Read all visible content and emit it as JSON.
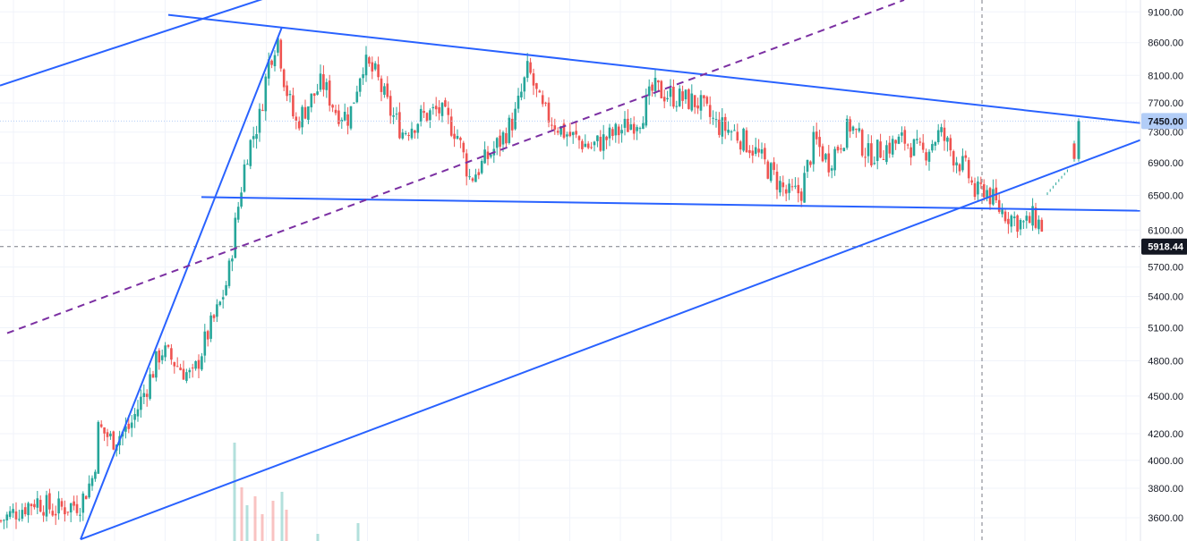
{
  "chart_data": {
    "type": "candlestick",
    "y_axis": {
      "side": "right",
      "ticks": [
        "9100.00",
        "8600.00",
        "8100.00",
        "7700.00",
        "7300.00",
        "6900.00",
        "6500.00",
        "6100.00",
        "5700.00",
        "5400.00",
        "5100.00",
        "4800.00",
        "4500.00",
        "4200.00",
        "4000.00",
        "3800.00",
        "3600.00"
      ],
      "range": [
        3450,
        9300
      ],
      "scale": "log"
    },
    "current_price": {
      "value": 7450.0,
      "label": "7450.00",
      "color": "#b2cdf7"
    },
    "crosshair_price": {
      "value": 5918.44,
      "label": "5918.44",
      "color": "#131722"
    },
    "colors": {
      "up": "#26a69a",
      "down": "#ef5350",
      "trendline": "#2962ff",
      "dashed_line": "#7b2fa2",
      "grid": "#f0f3fa"
    },
    "grid": true,
    "legend": "none",
    "price_path": [
      [
        0,
        3580
      ],
      [
        40,
        3720
      ],
      [
        60,
        3650
      ],
      [
        90,
        3700
      ],
      [
        105,
        3900
      ],
      [
        110,
        4250
      ],
      [
        125,
        4150
      ],
      [
        145,
        4250
      ],
      [
        165,
        4600
      ],
      [
        180,
        4900
      ],
      [
        200,
        4750
      ],
      [
        215,
        4650
      ],
      [
        230,
        5000
      ],
      [
        245,
        5300
      ],
      [
        255,
        5600
      ],
      [
        262,
        6100
      ],
      [
        268,
        6500
      ],
      [
        275,
        7000
      ],
      [
        290,
        7500
      ],
      [
        300,
        8300
      ],
      [
        310,
        8700
      ],
      [
        318,
        8000
      ],
      [
        330,
        7400
      ],
      [
        345,
        7700
      ],
      [
        360,
        8000
      ],
      [
        375,
        7600
      ],
      [
        390,
        7500
      ],
      [
        405,
        8300
      ],
      [
        420,
        8100
      ],
      [
        435,
        7600
      ],
      [
        450,
        7300
      ],
      [
        470,
        7500
      ],
      [
        490,
        7600
      ],
      [
        510,
        7300
      ],
      [
        525,
        6700
      ],
      [
        540,
        6900
      ],
      [
        560,
        7200
      ],
      [
        575,
        7500
      ],
      [
        590,
        8200
      ],
      [
        605,
        7600
      ],
      [
        630,
        7300
      ],
      [
        660,
        7100
      ],
      [
        690,
        7300
      ],
      [
        715,
        7500
      ],
      [
        730,
        7900
      ],
      [
        750,
        7800
      ],
      [
        780,
        7700
      ],
      [
        800,
        7400
      ],
      [
        820,
        7300
      ],
      [
        840,
        7100
      ],
      [
        860,
        6800
      ],
      [
        880,
        6500
      ],
      [
        895,
        6550
      ],
      [
        910,
        7200
      ],
      [
        925,
        6900
      ],
      [
        950,
        7400
      ],
      [
        970,
        7000
      ],
      [
        990,
        7100
      ],
      [
        1010,
        7200
      ],
      [
        1030,
        7000
      ],
      [
        1050,
        7300
      ],
      [
        1065,
        7000
      ],
      [
        1080,
        6800
      ],
      [
        1090,
        6500
      ],
      [
        1100,
        6600
      ],
      [
        1115,
        6350
      ],
      [
        1130,
        6250
      ],
      [
        1145,
        6150
      ],
      [
        1155,
        6250
      ],
      [
        1165,
        6120
      ]
    ],
    "final_candles": [
      {
        "x": 1200,
        "open": 6950,
        "close": 7150
      },
      {
        "x": 1205,
        "open": 6950,
        "close": 7450
      }
    ],
    "volume_bars": [
      {
        "x": 262,
        "volume": 110,
        "color": "#26a69a"
      },
      {
        "x": 270,
        "volume": 60,
        "color": "#ef5350"
      },
      {
        "x": 276,
        "volume": 40,
        "color": "#26a69a"
      },
      {
        "x": 285,
        "volume": 50,
        "color": "#ef5350"
      },
      {
        "x": 293,
        "volume": 30,
        "color": "#ef5350"
      },
      {
        "x": 305,
        "volume": 45,
        "color": "#ef5350"
      },
      {
        "x": 315,
        "volume": 55,
        "color": "#26a69a"
      },
      {
        "x": 320,
        "volume": 35,
        "color": "#ef5350"
      },
      {
        "x": 400,
        "volume": 20,
        "color": "#26a69a"
      },
      {
        "x": 355,
        "volume": 8,
        "color": "#26a69a"
      }
    ],
    "trendlines": [
      {
        "type": "solid",
        "x1": 0,
        "p1": 7950,
        "x2": 310,
        "p2": 9400
      },
      {
        "type": "solid",
        "x1": 188,
        "p1": 9050,
        "x2": 1275,
        "p2": 7420
      },
      {
        "type": "solid",
        "x1": 90,
        "p1": 3460,
        "x2": 315,
        "p2": 8850
      },
      {
        "type": "solid",
        "x1": 90,
        "p1": 3460,
        "x2": 1275,
        "p2": 7200
      },
      {
        "type": "solid",
        "x1": 225,
        "p1": 6480,
        "x2": 1275,
        "p2": 6320
      },
      {
        "type": "dashed",
        "x1": 8,
        "p1": 5050,
        "x2": 1010,
        "p2": 9300
      }
    ],
    "crosshair": {
      "x": 1097,
      "price": 5918.44
    },
    "current_price_line": {
      "price": 7450.0
    }
  }
}
